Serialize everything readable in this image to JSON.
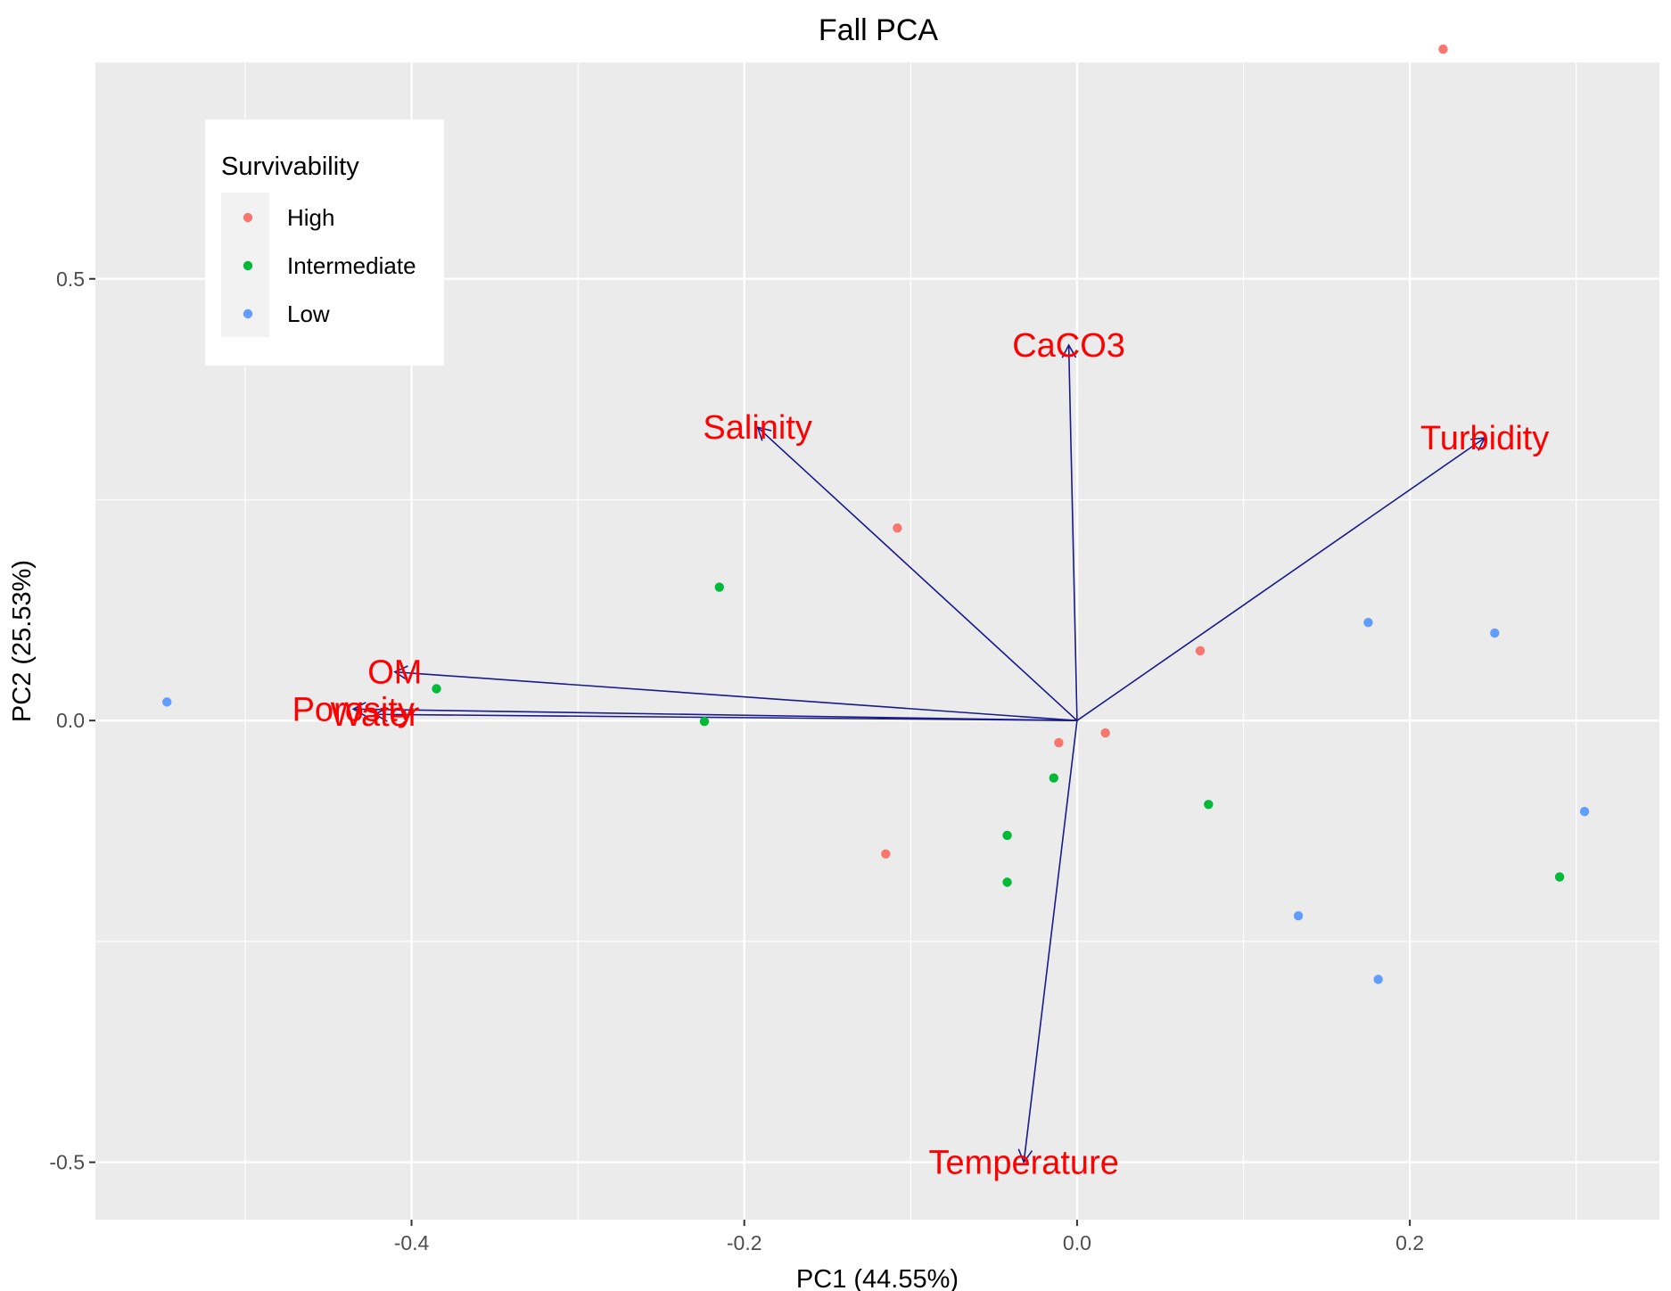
{
  "chart_data": {
    "type": "scatter",
    "title": "Fall PCA",
    "xlabel": "PC1 (44.55%)",
    "ylabel": "PC2 (25.53%)",
    "xlim": [
      -0.59,
      0.35
    ],
    "ylim": [
      -0.565,
      0.745
    ],
    "xticks": [
      -0.4,
      -0.2,
      0.0,
      0.2
    ],
    "xtick_labels": [
      "-0.4",
      "-0.2",
      "0.0",
      "0.2"
    ],
    "yticks": [
      -0.5,
      0.0,
      0.5
    ],
    "ytick_labels": [
      "-0.5",
      "0.0",
      "0.5"
    ],
    "grid": true,
    "background": "#ebebeb",
    "legend": {
      "title": "Survivability",
      "position": "top-left",
      "entries": [
        {
          "label": "High",
          "color": "#f8766d"
        },
        {
          "label": "Intermediate",
          "color": "#00ba38"
        },
        {
          "label": "Low",
          "color": "#619cff"
        }
      ]
    },
    "series": [
      {
        "name": "High",
        "color": "#f8766d",
        "points": [
          [
            0.22,
            0.76
          ],
          [
            -0.108,
            0.218
          ],
          [
            0.074,
            0.079
          ],
          [
            0.017,
            -0.014
          ],
          [
            -0.011,
            -0.025
          ],
          [
            -0.115,
            -0.151
          ]
        ]
      },
      {
        "name": "Intermediate",
        "color": "#00ba38",
        "points": [
          [
            -0.215,
            0.151
          ],
          [
            -0.385,
            0.036
          ],
          [
            -0.224,
            -0.001
          ],
          [
            -0.014,
            -0.065
          ],
          [
            0.079,
            -0.095
          ],
          [
            -0.042,
            -0.13
          ],
          [
            -0.042,
            -0.183
          ],
          [
            0.29,
            -0.177
          ]
        ]
      },
      {
        "name": "Low",
        "color": "#619cff",
        "points": [
          [
            -0.547,
            0.021
          ],
          [
            0.175,
            0.111
          ],
          [
            0.251,
            0.099
          ],
          [
            0.305,
            -0.103
          ],
          [
            0.133,
            -0.221
          ],
          [
            0.181,
            -0.293
          ]
        ]
      }
    ],
    "loadings": {
      "color": "#1a1a8c",
      "label_color": "#ff0000",
      "vectors": [
        {
          "label": "CaCO3",
          "x": -0.005,
          "y": 0.425
        },
        {
          "label": "Salinity",
          "x": -0.192,
          "y": 0.332
        },
        {
          "label": "Turbidity",
          "x": 0.245,
          "y": 0.32
        },
        {
          "label": "OM",
          "x": -0.41,
          "y": 0.055
        },
        {
          "label": "Porosity",
          "x": -0.435,
          "y": 0.013
        },
        {
          "label": "Water",
          "x": -0.422,
          "y": 0.007
        },
        {
          "label": "Temperature",
          "x": -0.032,
          "y": -0.5
        }
      ]
    }
  }
}
